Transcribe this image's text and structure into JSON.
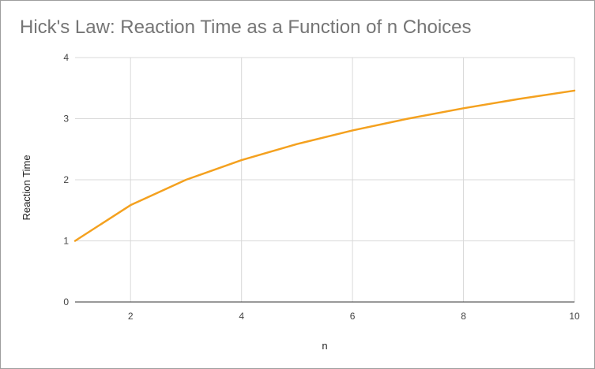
{
  "chart_data": {
    "type": "line",
    "title": "Hick's Law: Reaction Time as a Function of n Choices",
    "xlabel": "n",
    "ylabel": "Reaction Time",
    "x": [
      1,
      2,
      3,
      4,
      5,
      6,
      7,
      8,
      9,
      10
    ],
    "series": [
      {
        "values": [
          1.0,
          1.585,
          2.0,
          2.322,
          2.585,
          2.807,
          3.0,
          3.17,
          3.322,
          3.459
        ],
        "color": "#f4a11f"
      }
    ],
    "xlim": [
      1,
      10
    ],
    "ylim": [
      0,
      4
    ],
    "xticks": [
      "2",
      "4",
      "6",
      "8",
      "10"
    ],
    "yticks": [
      "0",
      "1",
      "2",
      "3",
      "4"
    ],
    "grid": true,
    "legend": "none"
  }
}
